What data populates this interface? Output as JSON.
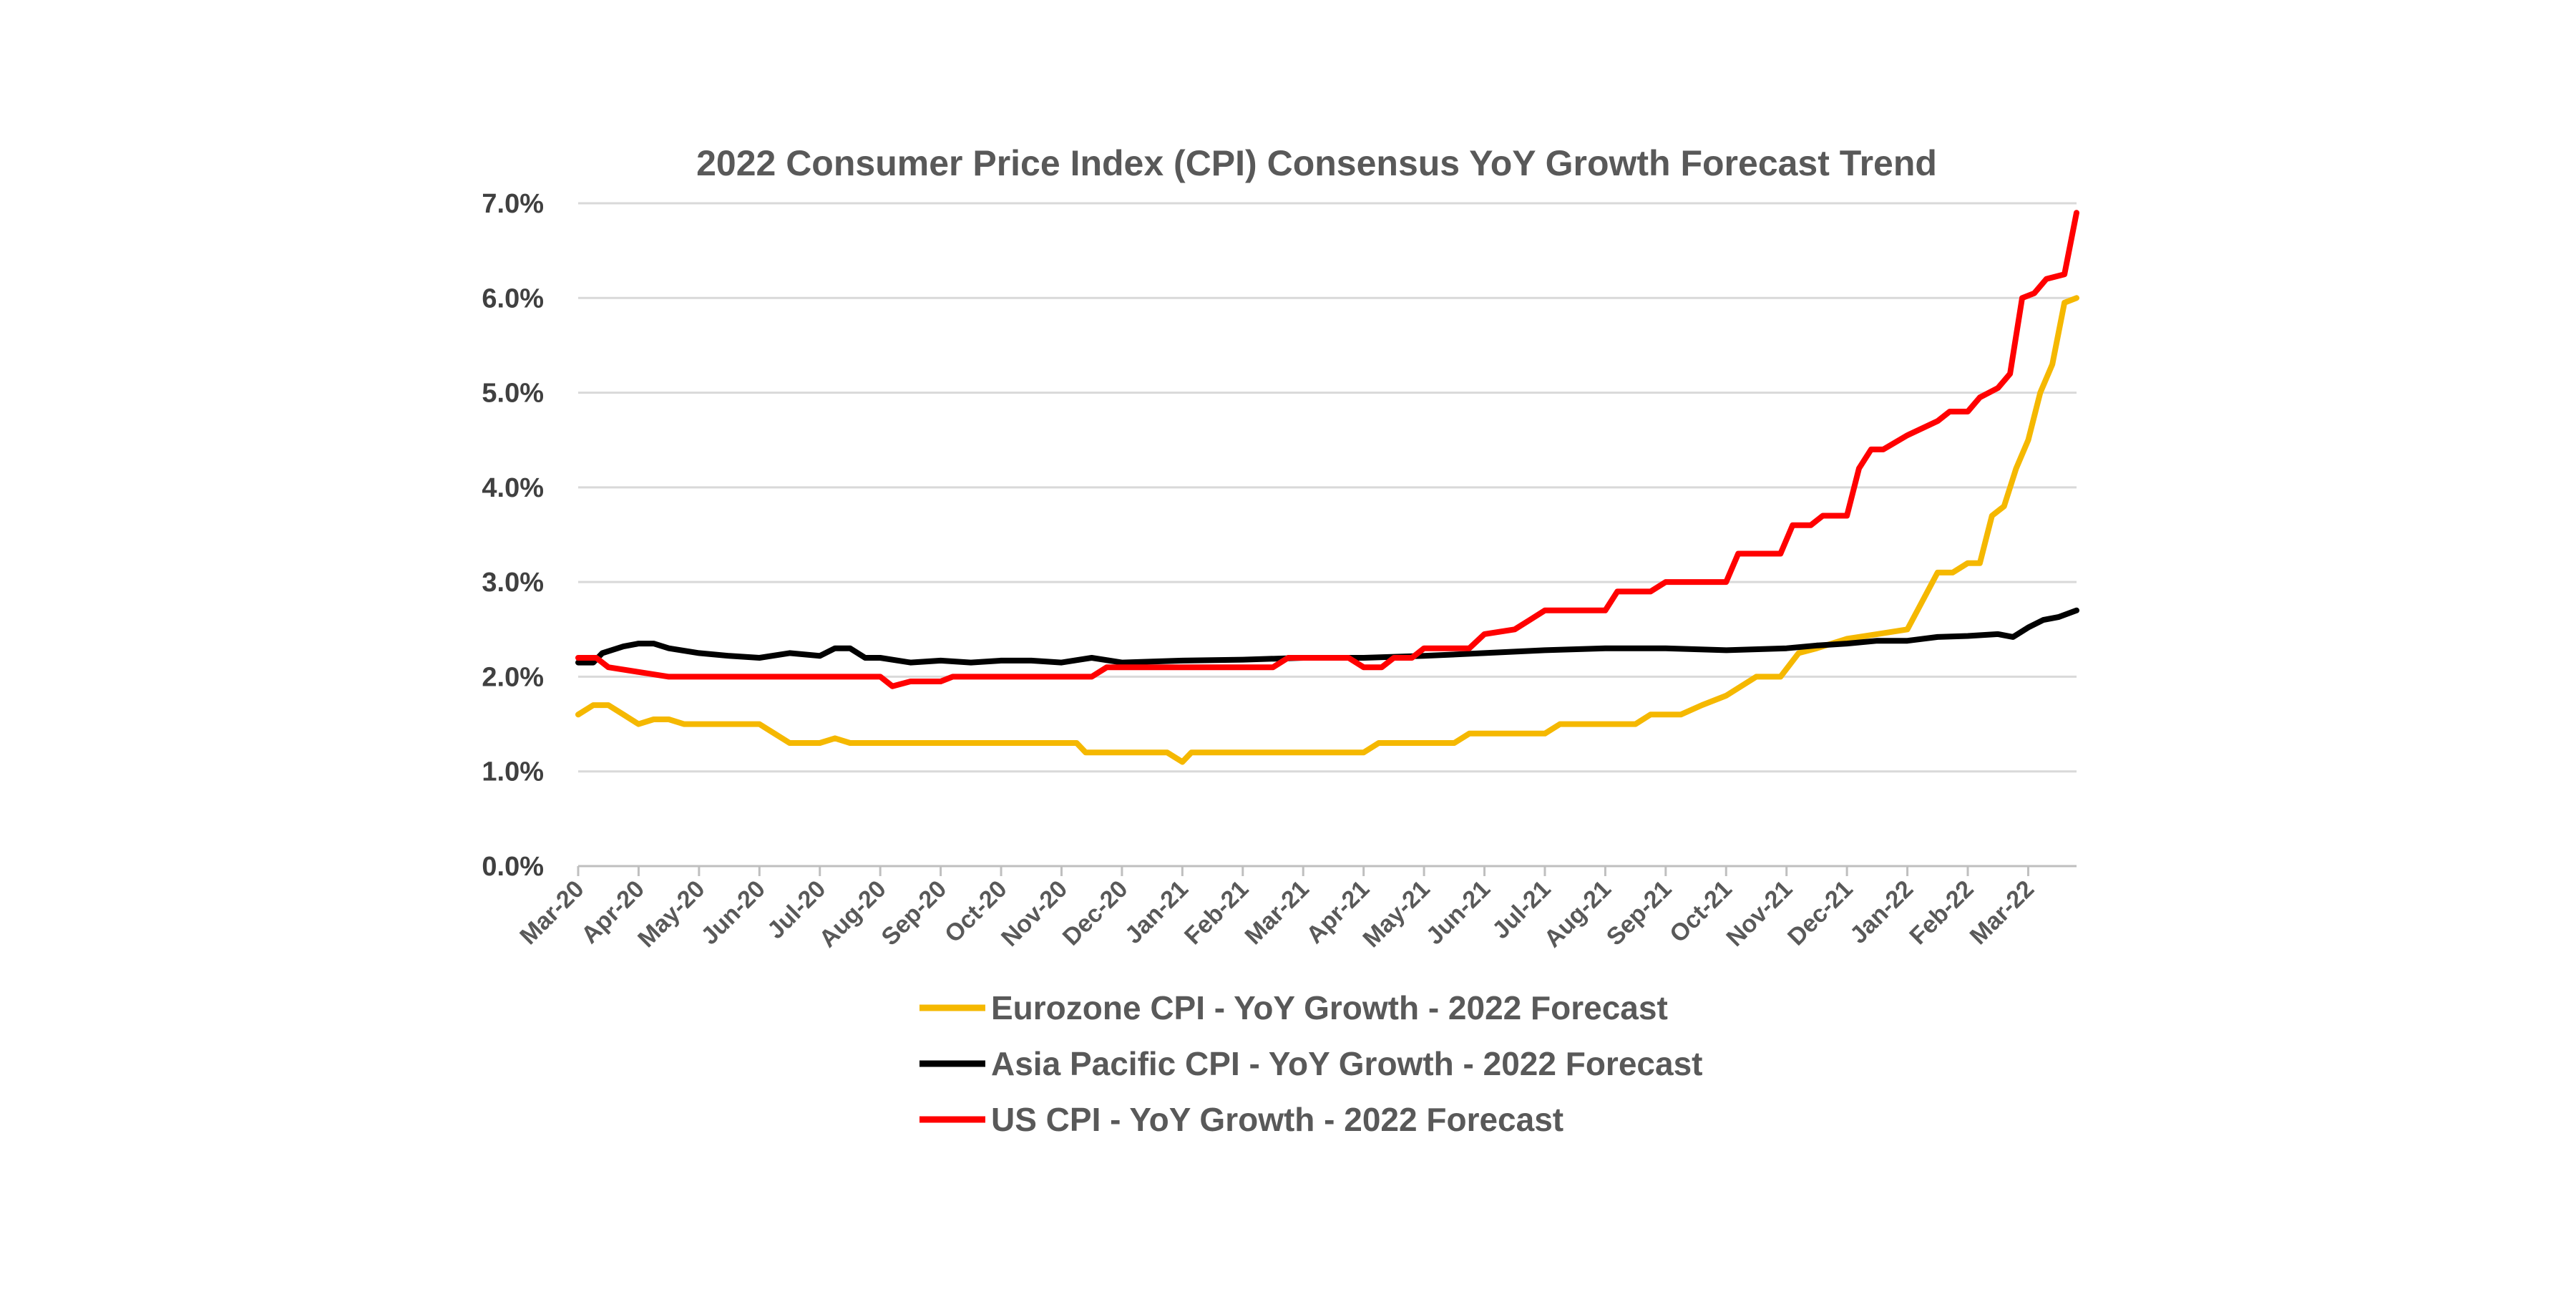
{
  "chart_data": {
    "type": "line",
    "title": "2022 Consumer Price Index (CPI) Consensus YoY Growth Forecast Trend",
    "xlabel": "",
    "ylabel": "",
    "ylim": [
      0,
      7
    ],
    "y_tick_values": [
      0,
      1,
      2,
      3,
      4,
      5,
      6,
      7
    ],
    "y_tick_labels": [
      "0.0%",
      "1.0%",
      "2.0%",
      "3.0%",
      "4.0%",
      "5.0%",
      "6.0%",
      "7.0%"
    ],
    "x_tick_labels": [
      "Mar-20",
      "Apr-20",
      "May-20",
      "Jun-20",
      "Jul-20",
      "Aug-20",
      "Sep-20",
      "Oct-20",
      "Nov-20",
      "Dec-20",
      "Jan-21",
      "Feb-21",
      "Mar-21",
      "Apr-21",
      "May-21",
      "Jun-21",
      "Jul-21",
      "Aug-21",
      "Sep-21",
      "Oct-21",
      "Nov-21",
      "Dec-21",
      "Jan-22",
      "Feb-22",
      "Mar-22"
    ],
    "x_unit": "months since Mar-20",
    "xlim": [
      0,
      24.8
    ],
    "grid": true,
    "legend_position": "bottom",
    "series": [
      {
        "name": "Eurozone CPI - YoY Growth - 2022 Forecast",
        "color": "#f5b800",
        "points": [
          [
            0,
            1.6
          ],
          [
            0.25,
            1.7
          ],
          [
            0.5,
            1.7
          ],
          [
            0.75,
            1.6
          ],
          [
            1,
            1.5
          ],
          [
            1.25,
            1.55
          ],
          [
            1.5,
            1.55
          ],
          [
            1.75,
            1.5
          ],
          [
            2,
            1.5
          ],
          [
            2.5,
            1.5
          ],
          [
            3,
            1.5
          ],
          [
            3.25,
            1.4
          ],
          [
            3.5,
            1.3
          ],
          [
            4,
            1.3
          ],
          [
            4.25,
            1.35
          ],
          [
            4.5,
            1.3
          ],
          [
            5,
            1.3
          ],
          [
            6,
            1.3
          ],
          [
            7,
            1.3
          ],
          [
            8,
            1.3
          ],
          [
            8.25,
            1.3
          ],
          [
            8.4,
            1.2
          ],
          [
            9,
            1.2
          ],
          [
            9.75,
            1.2
          ],
          [
            10,
            1.1
          ],
          [
            10.15,
            1.2
          ],
          [
            11,
            1.2
          ],
          [
            12,
            1.2
          ],
          [
            13,
            1.2
          ],
          [
            13.25,
            1.3
          ],
          [
            14,
            1.3
          ],
          [
            14.5,
            1.3
          ],
          [
            14.75,
            1.4
          ],
          [
            15.5,
            1.4
          ],
          [
            16,
            1.4
          ],
          [
            16.25,
            1.5
          ],
          [
            17,
            1.5
          ],
          [
            17.5,
            1.5
          ],
          [
            17.75,
            1.6
          ],
          [
            18.25,
            1.6
          ],
          [
            18.6,
            1.7
          ],
          [
            19,
            1.8
          ],
          [
            19.5,
            2.0
          ],
          [
            19.9,
            2.0
          ],
          [
            20.2,
            2.25
          ],
          [
            20.5,
            2.3
          ],
          [
            21,
            2.4
          ],
          [
            21.5,
            2.45
          ],
          [
            22,
            2.5
          ],
          [
            22.25,
            2.8
          ],
          [
            22.5,
            3.1
          ],
          [
            22.75,
            3.1
          ],
          [
            23,
            3.2
          ],
          [
            23.2,
            3.2
          ],
          [
            23.4,
            3.7
          ],
          [
            23.6,
            3.8
          ],
          [
            23.8,
            4.2
          ],
          [
            24,
            4.5
          ],
          [
            24.2,
            5.0
          ],
          [
            24.4,
            5.3
          ],
          [
            24.6,
            5.95
          ],
          [
            24.8,
            6.0
          ]
        ]
      },
      {
        "name": "Asia Pacific CPI - YoY Growth - 2022 Forecast",
        "color": "#000000",
        "points": [
          [
            0,
            2.15
          ],
          [
            0.25,
            2.15
          ],
          [
            0.4,
            2.25
          ],
          [
            0.75,
            2.32
          ],
          [
            1,
            2.35
          ],
          [
            1.25,
            2.35
          ],
          [
            1.5,
            2.3
          ],
          [
            2,
            2.25
          ],
          [
            2.5,
            2.22
          ],
          [
            3,
            2.2
          ],
          [
            3.5,
            2.25
          ],
          [
            4,
            2.22
          ],
          [
            4.25,
            2.3
          ],
          [
            4.5,
            2.3
          ],
          [
            4.75,
            2.2
          ],
          [
            5,
            2.2
          ],
          [
            5.5,
            2.15
          ],
          [
            6,
            2.17
          ],
          [
            6.5,
            2.15
          ],
          [
            7,
            2.17
          ],
          [
            7.5,
            2.17
          ],
          [
            8,
            2.15
          ],
          [
            8.5,
            2.2
          ],
          [
            9,
            2.15
          ],
          [
            10,
            2.17
          ],
          [
            11,
            2.18
          ],
          [
            12,
            2.2
          ],
          [
            13,
            2.2
          ],
          [
            14,
            2.22
          ],
          [
            15,
            2.25
          ],
          [
            16,
            2.28
          ],
          [
            17,
            2.3
          ],
          [
            18,
            2.3
          ],
          [
            19,
            2.28
          ],
          [
            20,
            2.3
          ],
          [
            20.5,
            2.33
          ],
          [
            21,
            2.35
          ],
          [
            21.5,
            2.38
          ],
          [
            22,
            2.38
          ],
          [
            22.5,
            2.42
          ],
          [
            23,
            2.43
          ],
          [
            23.5,
            2.45
          ],
          [
            23.75,
            2.42
          ],
          [
            24,
            2.52
          ],
          [
            24.25,
            2.6
          ],
          [
            24.5,
            2.63
          ],
          [
            24.8,
            2.7
          ]
        ]
      },
      {
        "name": "US CPI - YoY Growth - 2022 Forecast",
        "color": "#ff0000",
        "points": [
          [
            0,
            2.2
          ],
          [
            0.3,
            2.2
          ],
          [
            0.5,
            2.1
          ],
          [
            1,
            2.05
          ],
          [
            1.5,
            2.0
          ],
          [
            2,
            2.0
          ],
          [
            3,
            2.0
          ],
          [
            4,
            2.0
          ],
          [
            5,
            2.0
          ],
          [
            5.2,
            1.9
          ],
          [
            5.5,
            1.95
          ],
          [
            6,
            1.95
          ],
          [
            6.2,
            2.0
          ],
          [
            7,
            2.0
          ],
          [
            8,
            2.0
          ],
          [
            8.5,
            2.0
          ],
          [
            8.75,
            2.1
          ],
          [
            9,
            2.1
          ],
          [
            10,
            2.1
          ],
          [
            11,
            2.1
          ],
          [
            11.5,
            2.1
          ],
          [
            11.75,
            2.2
          ],
          [
            12,
            2.2
          ],
          [
            12.75,
            2.2
          ],
          [
            13,
            2.1
          ],
          [
            13.3,
            2.1
          ],
          [
            13.5,
            2.2
          ],
          [
            13.8,
            2.2
          ],
          [
            14,
            2.3
          ],
          [
            14.75,
            2.3
          ],
          [
            15,
            2.45
          ],
          [
            15.5,
            2.5
          ],
          [
            15.75,
            2.6
          ],
          [
            16,
            2.7
          ],
          [
            17,
            2.7
          ],
          [
            17.2,
            2.9
          ],
          [
            17.75,
            2.9
          ],
          [
            18,
            3.0
          ],
          [
            19,
            3.0
          ],
          [
            19.2,
            3.3
          ],
          [
            19.9,
            3.3
          ],
          [
            20.1,
            3.6
          ],
          [
            20.4,
            3.6
          ],
          [
            20.6,
            3.7
          ],
          [
            21,
            3.7
          ],
          [
            21.2,
            4.2
          ],
          [
            21.4,
            4.4
          ],
          [
            21.6,
            4.4
          ],
          [
            22,
            4.55
          ],
          [
            22.5,
            4.7
          ],
          [
            22.7,
            4.8
          ],
          [
            23,
            4.8
          ],
          [
            23.2,
            4.95
          ],
          [
            23.5,
            5.05
          ],
          [
            23.7,
            5.2
          ],
          [
            23.9,
            6.0
          ],
          [
            24.1,
            6.05
          ],
          [
            24.3,
            6.2
          ],
          [
            24.6,
            6.25
          ],
          [
            24.8,
            6.9
          ]
        ]
      }
    ]
  }
}
